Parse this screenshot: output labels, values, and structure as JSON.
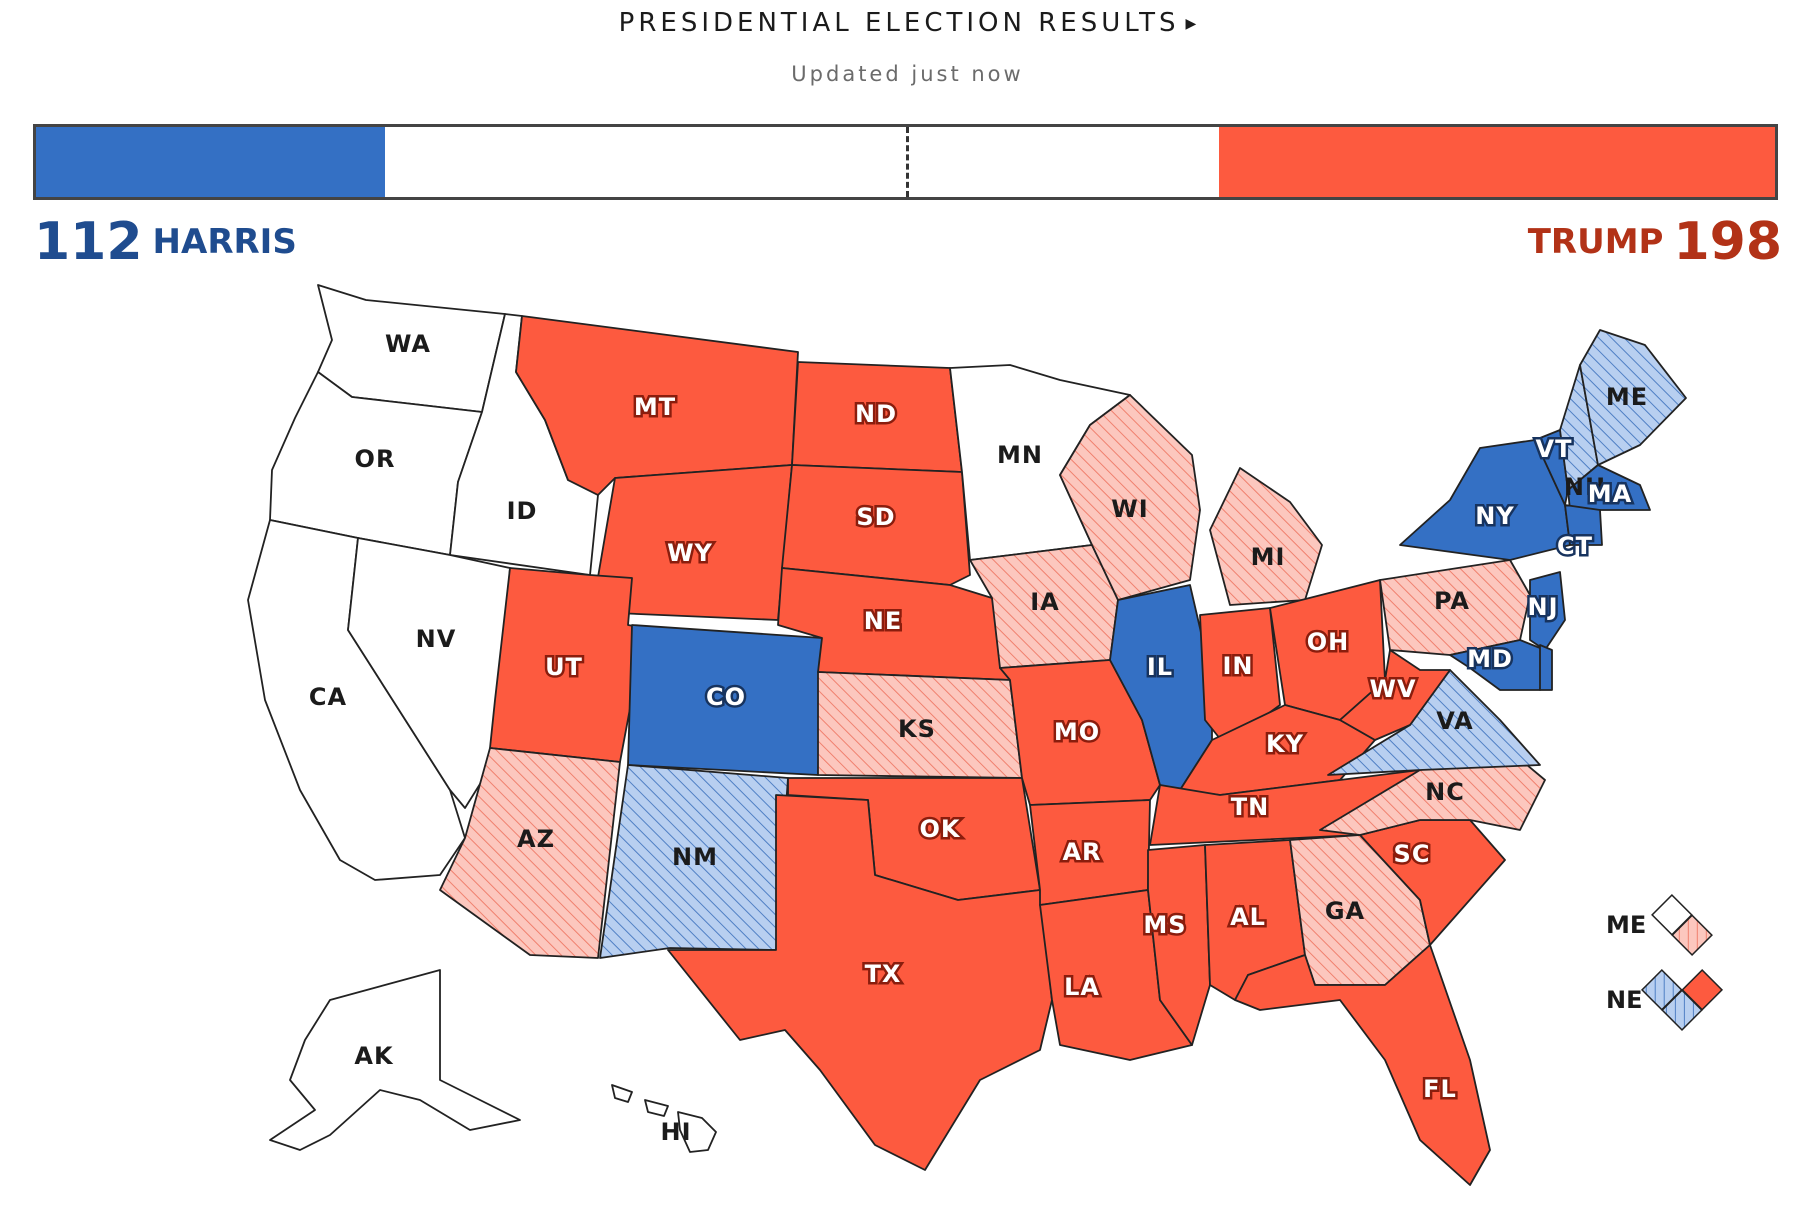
{
  "header": {
    "title": "PRESIDENTIAL ELECTION RESULTS",
    "updated": "Updated just now"
  },
  "tally": {
    "harris": {
      "name": "HARRIS",
      "votes": "112",
      "share": 0.2008
    },
    "trump": {
      "name": "TRUMP",
      "votes": "198",
      "share": 0.3197
    }
  },
  "colors": {
    "dem": "#3470c4",
    "dem_lean": "#b8cff0",
    "rep": "#fd5a3f",
    "rep_lean": "#fcc7be",
    "undecided": "#ffffff"
  },
  "states": [
    {
      "abbr": "WA",
      "status": "undecided"
    },
    {
      "abbr": "OR",
      "status": "undecided"
    },
    {
      "abbr": "CA",
      "status": "undecided"
    },
    {
      "abbr": "ID",
      "status": "undecided"
    },
    {
      "abbr": "NV",
      "status": "undecided"
    },
    {
      "abbr": "MT",
      "status": "rep"
    },
    {
      "abbr": "WY",
      "status": "rep"
    },
    {
      "abbr": "UT",
      "status": "rep"
    },
    {
      "abbr": "AZ",
      "status": "rep_lean"
    },
    {
      "abbr": "CO",
      "status": "dem"
    },
    {
      "abbr": "NM",
      "status": "dem_lean"
    },
    {
      "abbr": "ND",
      "status": "rep"
    },
    {
      "abbr": "SD",
      "status": "rep"
    },
    {
      "abbr": "NE",
      "status": "rep"
    },
    {
      "abbr": "KS",
      "status": "rep_lean"
    },
    {
      "abbr": "OK",
      "status": "rep"
    },
    {
      "abbr": "TX",
      "status": "rep"
    },
    {
      "abbr": "MN",
      "status": "undecided"
    },
    {
      "abbr": "IA",
      "status": "rep_lean"
    },
    {
      "abbr": "MO",
      "status": "rep"
    },
    {
      "abbr": "AR",
      "status": "rep"
    },
    {
      "abbr": "LA",
      "status": "rep"
    },
    {
      "abbr": "WI",
      "status": "rep_lean"
    },
    {
      "abbr": "IL",
      "status": "dem"
    },
    {
      "abbr": "MI",
      "status": "rep_lean"
    },
    {
      "abbr": "IN",
      "status": "rep"
    },
    {
      "abbr": "OH",
      "status": "rep"
    },
    {
      "abbr": "KY",
      "status": "rep"
    },
    {
      "abbr": "TN",
      "status": "rep"
    },
    {
      "abbr": "MS",
      "status": "rep"
    },
    {
      "abbr": "AL",
      "status": "rep"
    },
    {
      "abbr": "GA",
      "status": "rep_lean"
    },
    {
      "abbr": "FL",
      "status": "rep"
    },
    {
      "abbr": "SC",
      "status": "rep"
    },
    {
      "abbr": "NC",
      "status": "rep_lean"
    },
    {
      "abbr": "VA",
      "status": "dem_lean"
    },
    {
      "abbr": "WV",
      "status": "rep"
    },
    {
      "abbr": "PA",
      "status": "rep_lean"
    },
    {
      "abbr": "NY",
      "status": "dem"
    },
    {
      "abbr": "VT",
      "status": "dem"
    },
    {
      "abbr": "NH",
      "status": "dem_lean"
    },
    {
      "abbr": "ME",
      "status": "dem_lean"
    },
    {
      "abbr": "MA",
      "status": "dem"
    },
    {
      "abbr": "CT",
      "status": "dem"
    },
    {
      "abbr": "NJ",
      "status": "dem"
    },
    {
      "abbr": "MD",
      "status": "dem"
    },
    {
      "abbr": "DE",
      "status": "dem"
    },
    {
      "abbr": "AK",
      "status": "undecided"
    },
    {
      "abbr": "HI",
      "status": "undecided"
    }
  ],
  "legend": [
    {
      "label": "ME",
      "districts": [
        "undecided",
        "rep_lean"
      ]
    },
    {
      "label": "NE",
      "districts": [
        "dem_lean",
        "dem_lean",
        "rep"
      ]
    }
  ]
}
